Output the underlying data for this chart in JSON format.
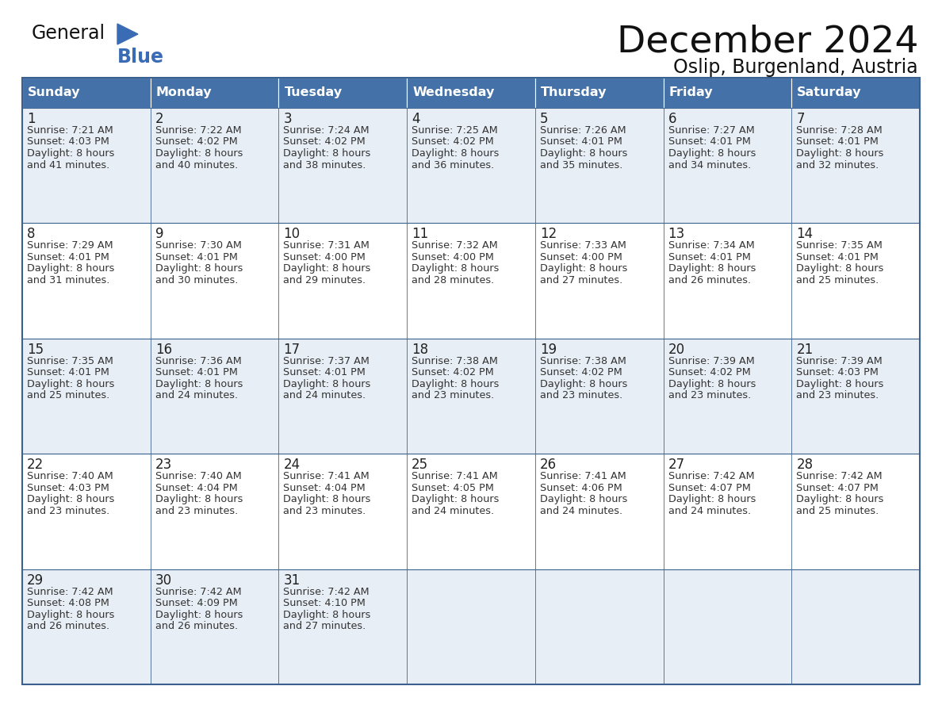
{
  "title": "December 2024",
  "subtitle": "Oslip, Burgenland, Austria",
  "days_of_week": [
    "Sunday",
    "Monday",
    "Tuesday",
    "Wednesday",
    "Thursday",
    "Friday",
    "Saturday"
  ],
  "header_bg": "#4472a8",
  "header_text": "#ffffff",
  "row_bg_light": "#e8eef5",
  "row_bg_white": "#ffffff",
  "border_color": "#3a6090",
  "day_num_color": "#222222",
  "cell_text_color": "#333333",
  "title_color": "#111111",
  "subtitle_color": "#111111",
  "logo_text_color": "#111111",
  "logo_blue_color": "#3a6cb5",
  "triangle_color": "#3a6cb5",
  "calendar_data": [
    [
      {
        "day": 1,
        "sunrise": "7:21 AM",
        "sunset": "4:03 PM",
        "daylight_h": "8 hours",
        "daylight_m": "41 minutes."
      },
      {
        "day": 2,
        "sunrise": "7:22 AM",
        "sunset": "4:02 PM",
        "daylight_h": "8 hours",
        "daylight_m": "40 minutes."
      },
      {
        "day": 3,
        "sunrise": "7:24 AM",
        "sunset": "4:02 PM",
        "daylight_h": "8 hours",
        "daylight_m": "38 minutes."
      },
      {
        "day": 4,
        "sunrise": "7:25 AM",
        "sunset": "4:02 PM",
        "daylight_h": "8 hours",
        "daylight_m": "36 minutes."
      },
      {
        "day": 5,
        "sunrise": "7:26 AM",
        "sunset": "4:01 PM",
        "daylight_h": "8 hours",
        "daylight_m": "35 minutes."
      },
      {
        "day": 6,
        "sunrise": "7:27 AM",
        "sunset": "4:01 PM",
        "daylight_h": "8 hours",
        "daylight_m": "34 minutes."
      },
      {
        "day": 7,
        "sunrise": "7:28 AM",
        "sunset": "4:01 PM",
        "daylight_h": "8 hours",
        "daylight_m": "32 minutes."
      }
    ],
    [
      {
        "day": 8,
        "sunrise": "7:29 AM",
        "sunset": "4:01 PM",
        "daylight_h": "8 hours",
        "daylight_m": "31 minutes."
      },
      {
        "day": 9,
        "sunrise": "7:30 AM",
        "sunset": "4:01 PM",
        "daylight_h": "8 hours",
        "daylight_m": "30 minutes."
      },
      {
        "day": 10,
        "sunrise": "7:31 AM",
        "sunset": "4:00 PM",
        "daylight_h": "8 hours",
        "daylight_m": "29 minutes."
      },
      {
        "day": 11,
        "sunrise": "7:32 AM",
        "sunset": "4:00 PM",
        "daylight_h": "8 hours",
        "daylight_m": "28 minutes."
      },
      {
        "day": 12,
        "sunrise": "7:33 AM",
        "sunset": "4:00 PM",
        "daylight_h": "8 hours",
        "daylight_m": "27 minutes."
      },
      {
        "day": 13,
        "sunrise": "7:34 AM",
        "sunset": "4:01 PM",
        "daylight_h": "8 hours",
        "daylight_m": "26 minutes."
      },
      {
        "day": 14,
        "sunrise": "7:35 AM",
        "sunset": "4:01 PM",
        "daylight_h": "8 hours",
        "daylight_m": "25 minutes."
      }
    ],
    [
      {
        "day": 15,
        "sunrise": "7:35 AM",
        "sunset": "4:01 PM",
        "daylight_h": "8 hours",
        "daylight_m": "25 minutes."
      },
      {
        "day": 16,
        "sunrise": "7:36 AM",
        "sunset": "4:01 PM",
        "daylight_h": "8 hours",
        "daylight_m": "24 minutes."
      },
      {
        "day": 17,
        "sunrise": "7:37 AM",
        "sunset": "4:01 PM",
        "daylight_h": "8 hours",
        "daylight_m": "24 minutes."
      },
      {
        "day": 18,
        "sunrise": "7:38 AM",
        "sunset": "4:02 PM",
        "daylight_h": "8 hours",
        "daylight_m": "23 minutes."
      },
      {
        "day": 19,
        "sunrise": "7:38 AM",
        "sunset": "4:02 PM",
        "daylight_h": "8 hours",
        "daylight_m": "23 minutes."
      },
      {
        "day": 20,
        "sunrise": "7:39 AM",
        "sunset": "4:02 PM",
        "daylight_h": "8 hours",
        "daylight_m": "23 minutes."
      },
      {
        "day": 21,
        "sunrise": "7:39 AM",
        "sunset": "4:03 PM",
        "daylight_h": "8 hours",
        "daylight_m": "23 minutes."
      }
    ],
    [
      {
        "day": 22,
        "sunrise": "7:40 AM",
        "sunset": "4:03 PM",
        "daylight_h": "8 hours",
        "daylight_m": "23 minutes."
      },
      {
        "day": 23,
        "sunrise": "7:40 AM",
        "sunset": "4:04 PM",
        "daylight_h": "8 hours",
        "daylight_m": "23 minutes."
      },
      {
        "day": 24,
        "sunrise": "7:41 AM",
        "sunset": "4:04 PM",
        "daylight_h": "8 hours",
        "daylight_m": "23 minutes."
      },
      {
        "day": 25,
        "sunrise": "7:41 AM",
        "sunset": "4:05 PM",
        "daylight_h": "8 hours",
        "daylight_m": "24 minutes."
      },
      {
        "day": 26,
        "sunrise": "7:41 AM",
        "sunset": "4:06 PM",
        "daylight_h": "8 hours",
        "daylight_m": "24 minutes."
      },
      {
        "day": 27,
        "sunrise": "7:42 AM",
        "sunset": "4:07 PM",
        "daylight_h": "8 hours",
        "daylight_m": "24 minutes."
      },
      {
        "day": 28,
        "sunrise": "7:42 AM",
        "sunset": "4:07 PM",
        "daylight_h": "8 hours",
        "daylight_m": "25 minutes."
      }
    ],
    [
      {
        "day": 29,
        "sunrise": "7:42 AM",
        "sunset": "4:08 PM",
        "daylight_h": "8 hours",
        "daylight_m": "26 minutes."
      },
      {
        "day": 30,
        "sunrise": "7:42 AM",
        "sunset": "4:09 PM",
        "daylight_h": "8 hours",
        "daylight_m": "26 minutes."
      },
      {
        "day": 31,
        "sunrise": "7:42 AM",
        "sunset": "4:10 PM",
        "daylight_h": "8 hours",
        "daylight_m": "27 minutes."
      },
      null,
      null,
      null,
      null
    ]
  ]
}
